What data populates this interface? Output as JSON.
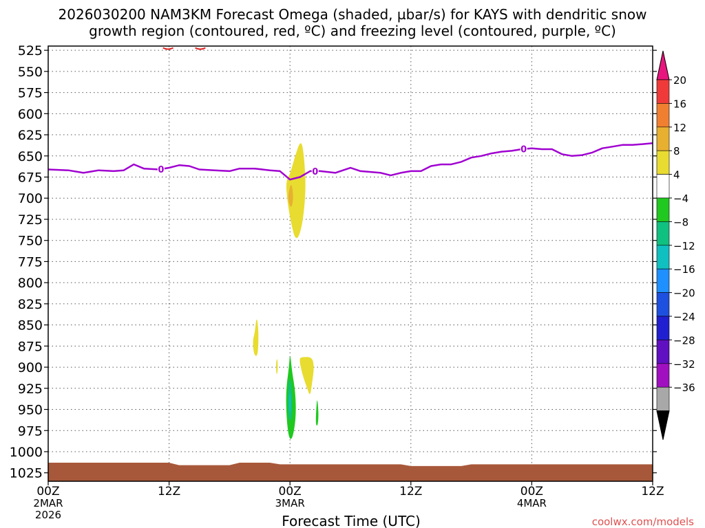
{
  "chart_data": {
    "type": "heatmap",
    "title_line1": "2026030200 NAM3KM Forecast Omega (shaded, µbar/s) for KAYS with dendritic snow",
    "title_line2": "growth region (contoured, red, ºC) and freezing level (contoured, purple, ºC)",
    "xlabel": "Forecast Time (UTC)",
    "credit": "coolwx.com/models",
    "x_unit": "hours since 00Z 2 MAR 2026",
    "xlim": [
      0,
      60
    ],
    "x_ticks": [
      {
        "value": 0,
        "label": "00Z",
        "sub1": "2MAR",
        "sub2": "2026"
      },
      {
        "value": 12,
        "label": "12Z",
        "sub1": "",
        "sub2": ""
      },
      {
        "value": 24,
        "label": "00Z",
        "sub1": "3MAR",
        "sub2": ""
      },
      {
        "value": 36,
        "label": "12Z",
        "sub1": "",
        "sub2": ""
      },
      {
        "value": 48,
        "label": "00Z",
        "sub1": "4MAR",
        "sub2": ""
      },
      {
        "value": 60,
        "label": "12Z",
        "sub1": "",
        "sub2": ""
      }
    ],
    "y_unit": "hPa",
    "y_ticks": [
      525,
      550,
      575,
      600,
      625,
      650,
      675,
      700,
      725,
      750,
      775,
      800,
      825,
      850,
      875,
      900,
      925,
      950,
      975,
      1000,
      1025
    ],
    "y_top": 520,
    "y_bottom": 1035,
    "grid": true,
    "colorbar": {
      "placement": "right",
      "levels": [
        "20",
        "16",
        "12",
        "8",
        "4",
        "−4",
        "−8",
        "−12",
        "−16",
        "−20",
        "−24",
        "−28",
        "−32",
        "−36"
      ],
      "colors": [
        "#e8157e",
        "#f03a3a",
        "#f08030",
        "#e8b030",
        "#e8dc30",
        "#ffffff",
        "#20c820",
        "#10c080",
        "#10c0c0",
        "#1e90ff",
        "#1e50e0",
        "#2020d0",
        "#6010c0",
        "#a010c0",
        "#a8a8a8",
        "#000000"
      ]
    },
    "freezing_level": {
      "color": "#a000d0",
      "label": "0",
      "label_at_hours": [
        11.2,
        26.5,
        47.2
      ],
      "points": [
        [
          0,
          666
        ],
        [
          2,
          667
        ],
        [
          3.5,
          670
        ],
        [
          5,
          667
        ],
        [
          6.5,
          668
        ],
        [
          7.5,
          667
        ],
        [
          8.5,
          660
        ],
        [
          9.5,
          665
        ],
        [
          11,
          666
        ],
        [
          12,
          664
        ],
        [
          13,
          661
        ],
        [
          14,
          662
        ],
        [
          15,
          666
        ],
        [
          16.5,
          667
        ],
        [
          18,
          668
        ],
        [
          19,
          665
        ],
        [
          20.5,
          665
        ],
        [
          22,
          667
        ],
        [
          23,
          668
        ],
        [
          24,
          678
        ],
        [
          25,
          675
        ],
        [
          26,
          668
        ],
        [
          27,
          668
        ],
        [
          28.5,
          670
        ],
        [
          30,
          664
        ],
        [
          31,
          668
        ],
        [
          33,
          670
        ],
        [
          34,
          673
        ],
        [
          35,
          670
        ],
        [
          36,
          668
        ],
        [
          37,
          668
        ],
        [
          38,
          662
        ],
        [
          39,
          660
        ],
        [
          40,
          660
        ],
        [
          41,
          657
        ],
        [
          42,
          652
        ],
        [
          43,
          650
        ],
        [
          44,
          647
        ],
        [
          45,
          645
        ],
        [
          46,
          644
        ],
        [
          47,
          642
        ],
        [
          48,
          641
        ],
        [
          49,
          642
        ],
        [
          50,
          642
        ],
        [
          51,
          648
        ],
        [
          52,
          650
        ],
        [
          53,
          649
        ],
        [
          54,
          646
        ],
        [
          55,
          641
        ],
        [
          56,
          639
        ],
        [
          57,
          637
        ],
        [
          58,
          637
        ],
        [
          59,
          636
        ],
        [
          60,
          635
        ]
      ]
    },
    "ground": {
      "color": "#a8583a",
      "points": [
        [
          0,
          1013
        ],
        [
          12,
          1013
        ],
        [
          13,
          1016
        ],
        [
          18,
          1016
        ],
        [
          19,
          1013
        ],
        [
          22,
          1013
        ],
        [
          23,
          1015
        ],
        [
          35,
          1015
        ],
        [
          36,
          1017
        ],
        [
          41,
          1017
        ],
        [
          42,
          1015
        ],
        [
          60,
          1015
        ]
      ]
    },
    "dendritic_region_marks": [
      {
        "h": 11.9,
        "p": 522,
        "rx": 0.5,
        "color": "#e02020"
      },
      {
        "h": 15.1,
        "p": 522,
        "rx": 0.5,
        "color": "#e02020"
      }
    ],
    "omega_features": [
      {
        "value": 4,
        "color": "#e8dc30",
        "points": [
          [
            24,
            672
          ],
          [
            24.5,
            650
          ],
          [
            25.1,
            630
          ],
          [
            25.4,
            650
          ],
          [
            25.6,
            690
          ],
          [
            25.2,
            735
          ],
          [
            24.6,
            752
          ],
          [
            24.1,
            730
          ],
          [
            23.7,
            700
          ],
          [
            23.6,
            680
          ]
        ]
      },
      {
        "value": 8,
        "color": "#e8b030",
        "points": [
          [
            23.8,
            696
          ],
          [
            24.15,
            680
          ],
          [
            24.35,
            700
          ],
          [
            24.15,
            712
          ],
          [
            23.9,
            707
          ]
        ]
      },
      {
        "value": 4,
        "color": "#e8dc30",
        "points": [
          [
            20.5,
            860
          ],
          [
            20.7,
            838
          ],
          [
            20.9,
            860
          ],
          [
            20.8,
            888
          ],
          [
            20.4,
            885
          ],
          [
            20.3,
            868
          ]
        ]
      },
      {
        "value": 4,
        "color": "#e8dc30",
        "points": [
          [
            22.6,
            895
          ],
          [
            22.75,
            888
          ],
          [
            22.8,
            905
          ],
          [
            22.65,
            910
          ]
        ]
      },
      {
        "value": 4,
        "color": "#e8dc30",
        "points": [
          [
            24.9,
            890
          ],
          [
            25.2,
            888
          ],
          [
            26.2,
            888
          ],
          [
            26.4,
            900
          ],
          [
            26.2,
            918
          ],
          [
            26.0,
            935
          ],
          [
            25.7,
            925
          ],
          [
            25.2,
            908
          ]
        ]
      },
      {
        "value": -4,
        "color": "#20c820",
        "points": [
          [
            23.9,
            900
          ],
          [
            24.0,
            882
          ],
          [
            24.2,
            905
          ],
          [
            24.55,
            930
          ],
          [
            24.6,
            960
          ],
          [
            24.25,
            985
          ],
          [
            23.9,
            985
          ],
          [
            23.65,
            960
          ],
          [
            23.6,
            928
          ]
        ]
      },
      {
        "value": -8,
        "color": "#10c080",
        "points": [
          [
            23.8,
            925
          ],
          [
            24.0,
            910
          ],
          [
            24.2,
            930
          ],
          [
            24.2,
            958
          ],
          [
            24.0,
            965
          ],
          [
            23.8,
            955
          ]
        ]
      },
      {
        "value": -12,
        "color": "#10c0c0",
        "points": [
          [
            23.9,
            935
          ],
          [
            24.05,
            928
          ],
          [
            24.1,
            950
          ],
          [
            23.95,
            955
          ]
        ]
      },
      {
        "value": -4,
        "color": "#20c820",
        "points": [
          [
            26.6,
            950
          ],
          [
            26.7,
            935
          ],
          [
            26.85,
            955
          ],
          [
            26.75,
            970
          ],
          [
            26.55,
            968
          ]
        ]
      }
    ]
  }
}
